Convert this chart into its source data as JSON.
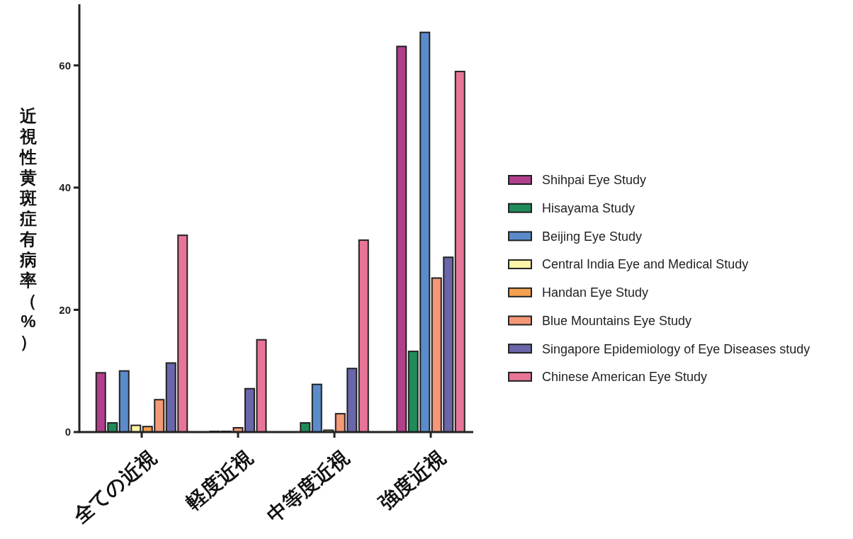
{
  "chart_data": {
    "type": "bar",
    "ylabel": "近視性黄斑症有病率（%）",
    "categories": [
      "全ての近視",
      "軽度近視",
      "中等度近視",
      "強度近視"
    ],
    "ylim": [
      0,
      70
    ],
    "yticks": [
      0,
      20,
      40,
      60
    ],
    "grid": false,
    "legend": "right",
    "series": [
      {
        "name": "Shihpai Eye Study",
        "color": "#b03f8c",
        "values": [
          9.7,
          null,
          null,
          63.1
        ]
      },
      {
        "name": "Hisayama Study",
        "color": "#1f8c5a",
        "values": [
          1.5,
          null,
          1.5,
          13.2
        ]
      },
      {
        "name": "Beijing Eye Study",
        "color": "#5a8ccc",
        "values": [
          10.0,
          null,
          7.8,
          65.4
        ]
      },
      {
        "name": "Central India Eye and Medical Study",
        "color": "#fff5a8",
        "values": [
          1.1,
          0,
          0.3,
          null
        ]
      },
      {
        "name": "Handan Eye Study",
        "color": "#f5a050",
        "values": [
          0.9,
          0,
          null,
          null
        ]
      },
      {
        "name": "Blue Mountains Eye Study",
        "color": "#f59878",
        "values": [
          5.3,
          0.7,
          3.0,
          25.2
        ]
      },
      {
        "name": "Singapore Epidemiology of Eye Diseases study",
        "color": "#6a66aa",
        "values": [
          11.3,
          7.1,
          10.4,
          28.6
        ]
      },
      {
        "name": "Chinese  American Eye Study",
        "color": "#e87598",
        "values": [
          32.2,
          15.1,
          31.4,
          59.0
        ]
      }
    ]
  }
}
